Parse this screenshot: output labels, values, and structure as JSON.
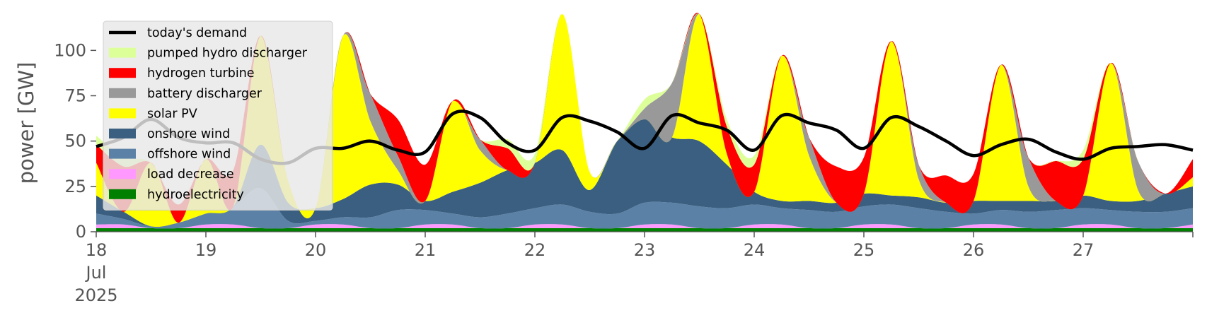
{
  "chart_data": {
    "type": "area",
    "title": "",
    "xlabel": "",
    "ylabel": "power [GW]",
    "ylim": [
      0,
      120
    ],
    "yticks": [
      0,
      25,
      50,
      75,
      100
    ],
    "xlim": [
      "2025-07-18T00:00",
      "2025-07-28T00:00"
    ],
    "xtick_labels": [
      {
        "x": "2025-07-18",
        "lines": [
          "18",
          "Jul",
          "2025"
        ]
      },
      {
        "x": "2025-07-19",
        "lines": [
          "19"
        ]
      },
      {
        "x": "2025-07-20",
        "lines": [
          "20"
        ]
      },
      {
        "x": "2025-07-21",
        "lines": [
          "21"
        ]
      },
      {
        "x": "2025-07-22",
        "lines": [
          "22"
        ]
      },
      {
        "x": "2025-07-23",
        "lines": [
          "23"
        ]
      },
      {
        "x": "2025-07-24",
        "lines": [
          "24"
        ]
      },
      {
        "x": "2025-07-25",
        "lines": [
          "25"
        ]
      },
      {
        "x": "2025-07-26",
        "lines": [
          "26"
        ]
      },
      {
        "x": "2025-07-27",
        "lines": [
          "27"
        ]
      }
    ],
    "grid": false,
    "legend_position": "top-left",
    "stack_order_bottom_to_top": [
      "hydroelectricity",
      "load decrease",
      "offshore wind",
      "onshore wind",
      "solar PV",
      "battery discharger",
      "hydrogen turbine",
      "pumped hydro discharger"
    ],
    "x_step_hours": 6,
    "series": [
      {
        "name": "hydroelectricity",
        "color": "#008000",
        "values": [
          2,
          2,
          2,
          2,
          2,
          2,
          2,
          2,
          2,
          2,
          2,
          2,
          2,
          2,
          2,
          2,
          2,
          2,
          2,
          2,
          2,
          2,
          2,
          2,
          2,
          2,
          2,
          2,
          2,
          2,
          2,
          2,
          2,
          2,
          2,
          2,
          2,
          2,
          2,
          2,
          2
        ]
      },
      {
        "name": "load decrease",
        "color": "#ff99ff",
        "values": [
          2,
          2,
          0,
          0,
          2,
          2,
          0,
          0,
          2,
          2,
          0,
          0,
          2,
          2,
          0,
          0,
          2,
          2,
          0,
          0,
          2,
          2,
          0,
          0,
          2,
          2,
          0,
          0,
          2,
          2,
          0,
          0,
          2,
          2,
          0,
          0,
          2,
          2,
          0,
          0,
          2
        ]
      },
      {
        "name": "offshore wind",
        "color": "#5b82a6",
        "values": [
          6,
          3,
          1,
          3,
          6,
          10,
          22,
          4,
          2,
          4,
          6,
          10,
          8,
          6,
          6,
          8,
          9,
          11,
          9,
          8,
          12,
          12,
          12,
          11,
          11,
          9,
          10,
          9,
          10,
          11,
          11,
          9,
          6,
          8,
          9,
          10,
          9,
          8,
          9,
          9,
          9
        ]
      },
      {
        "name": "onshore wind",
        "color": "#3b5f80",
        "values": [
          10,
          4,
          0,
          0,
          0,
          0,
          24,
          10,
          7,
          10,
          18,
          14,
          5,
          12,
          19,
          24,
          25,
          30,
          12,
          40,
          46,
          36,
          36,
          24,
          7,
          4,
          5,
          5,
          7,
          5,
          6,
          5,
          7,
          5,
          6,
          5,
          7,
          5,
          6,
          10,
          12
        ]
      },
      {
        "name": "solar PV",
        "color": "#ffff00",
        "values": [
          18,
          0,
          35,
          0,
          30,
          0,
          60,
          12,
          0,
          90,
          35,
          8,
          0,
          50,
          18,
          0,
          0,
          90,
          10,
          0,
          0,
          0,
          80,
          6,
          0,
          80,
          25,
          0,
          0,
          85,
          10,
          0,
          0,
          75,
          8,
          0,
          0,
          76,
          6,
          0,
          5
        ]
      },
      {
        "name": "battery discharger",
        "color": "#999999",
        "values": [
          0,
          0,
          0,
          0,
          0,
          0,
          0,
          0,
          0,
          0,
          15,
          8,
          0,
          0,
          6,
          0,
          0,
          0,
          0,
          0,
          6,
          30,
          6,
          0,
          0,
          0,
          10,
          0,
          0,
          0,
          8,
          0,
          0,
          0,
          16,
          0,
          0,
          0,
          16,
          0,
          0
        ]
      },
      {
        "name": "hydrogen turbine",
        "color": "#ff0000",
        "values": [
          10,
          25,
          0,
          10,
          0,
          20,
          0,
          0,
          0,
          0,
          0,
          20,
          20,
          0,
          0,
          12,
          0,
          0,
          0,
          0,
          0,
          0,
          0,
          15,
          15,
          0,
          0,
          20,
          20,
          0,
          0,
          15,
          15,
          0,
          0,
          22,
          20,
          0,
          0,
          0,
          10
        ]
      },
      {
        "name": "pumped hydro discharger",
        "color": "#ddff99",
        "values": [
          5,
          5,
          0,
          0,
          0,
          0,
          0,
          0,
          0,
          0,
          0,
          0,
          0,
          0,
          0,
          5,
          5,
          0,
          0,
          0,
          5,
          0,
          0,
          4,
          5,
          0,
          0,
          0,
          0,
          0,
          0,
          0,
          0,
          0,
          0,
          0,
          5,
          0,
          0,
          0,
          0
        ]
      },
      {
        "name": "today's demand",
        "color": "#000000",
        "type": "line",
        "values": [
          47,
          52,
          62,
          52,
          49,
          49,
          40,
          38,
          46,
          46,
          50,
          45,
          44,
          65,
          63,
          49,
          45,
          63,
          61,
          55,
          46,
          64,
          60,
          56,
          45,
          64,
          60,
          56,
          46,
          63,
          58,
          50,
          42,
          48,
          51,
          44,
          40,
          46,
          47,
          48,
          45
        ]
      }
    ],
    "legend_entries": [
      "today's demand",
      "pumped hydro discharger",
      "hydrogen turbine",
      "battery discharger",
      "solar PV",
      "onshore wind",
      "offshore wind",
      "load decrease",
      "hydroelectricity"
    ]
  }
}
